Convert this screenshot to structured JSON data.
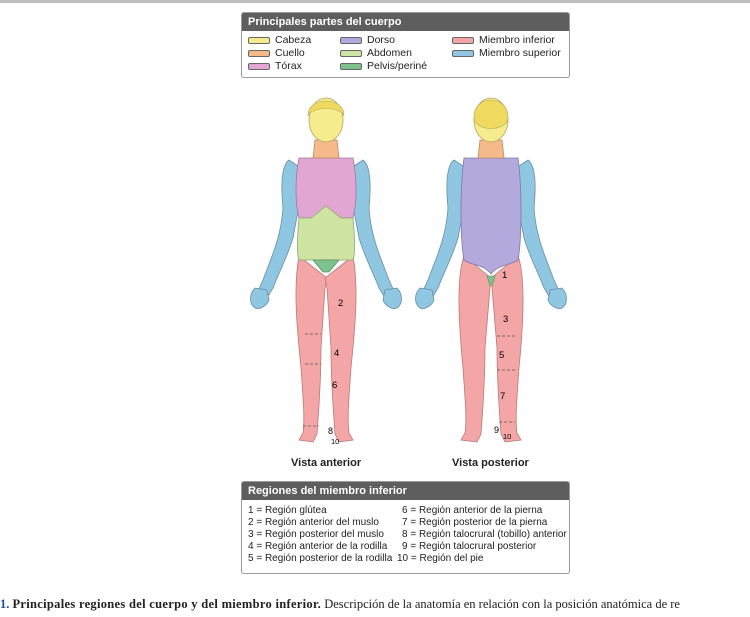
{
  "legend": {
    "title": "Principales partes del cuerpo",
    "items": [
      {
        "label": "Cabeza",
        "color": "#f6ec8e"
      },
      {
        "label": "Cuello",
        "color": "#f6b98a"
      },
      {
        "label": "Tórax",
        "color": "#e2a6d2"
      },
      {
        "label": "Dorso",
        "color": "#b4a9dc"
      },
      {
        "label": "Abdomen",
        "color": "#cde4a2"
      },
      {
        "label": "Pelvis/periné",
        "color": "#7ec28e"
      },
      {
        "label": "Miembro inferior",
        "color": "#f4a5a5"
      },
      {
        "label": "Miembro superior",
        "color": "#8fc6e2"
      }
    ]
  },
  "figures": {
    "anterior_label": "Vista anterior",
    "posterior_label": "Vista posterior",
    "anterior_numbers": [
      "2",
      "4",
      "6",
      "8",
      "10"
    ],
    "posterior_numbers": [
      "1",
      "3",
      "5",
      "7",
      "9",
      "10"
    ]
  },
  "regions": {
    "title": "Regiones del miembro inferior",
    "items": [
      "1 = Región glútea",
      "2 = Región anterior del muslo",
      "3 = Región posterior del muslo",
      "4 = Región anterior de la rodilla",
      "5 = Región posterior de la rodilla",
      "6 = Región anterior de la pierna",
      "7 = Región posterior de la pierna",
      "8 = Región talocrural (tobillo) anterior",
      "9 = Región talocrural posterior",
      "10 = Región del pie"
    ]
  },
  "caption": {
    "number": "1.",
    "title": "Principales regiones del cuerpo y del miembro inferior.",
    "text": "Descripción de la anatomía en relación con la posición anatómica de re"
  }
}
